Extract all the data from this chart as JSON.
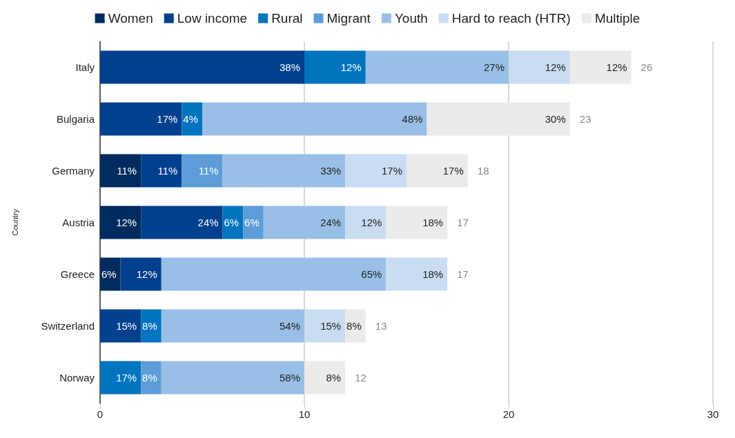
{
  "chart_data": {
    "type": "bar",
    "orientation": "horizontal",
    "stacked": true,
    "ylabel": "Country",
    "categories": [
      "Italy",
      "Bulgaria",
      "Germany",
      "Austria",
      "Greece",
      "Switzerland",
      "Norway"
    ],
    "series": [
      {
        "name": "Women",
        "color": "#002b5e",
        "values": [
          null,
          null,
          2,
          2,
          1,
          null,
          null
        ]
      },
      {
        "name": "Low income",
        "color": "#00408e",
        "values": [
          10,
          4,
          2,
          4,
          2,
          2,
          null
        ]
      },
      {
        "name": "Rural",
        "color": "#0074bf",
        "values": [
          3,
          1,
          null,
          1,
          null,
          1,
          2
        ]
      },
      {
        "name": "Migrant",
        "color": "#5c9dd8",
        "values": [
          null,
          null,
          2,
          1,
          null,
          null,
          1
        ]
      },
      {
        "name": "Youth",
        "color": "#99bfe6",
        "values": [
          7,
          11,
          6,
          4,
          11,
          7,
          7
        ]
      },
      {
        "name": "Hard to reach (HTR)",
        "color": "#c9dcf1",
        "values": [
          3,
          null,
          3,
          2,
          3,
          2,
          null
        ]
      },
      {
        "name": "Multiple",
        "color": "#ebebeb",
        "values": [
          3,
          7,
          3,
          3,
          null,
          1,
          2
        ]
      }
    ],
    "annotations": [
      {
        "text": "38%",
        "x": 10,
        "y": "Italy"
      },
      {
        "text": "12%",
        "x": 13,
        "y": "Italy"
      },
      {
        "text": "27%",
        "x": 20,
        "y": "Italy"
      },
      {
        "text": "12%",
        "x": 23,
        "y": "Italy"
      },
      {
        "text": "12%",
        "x": 26,
        "y": "Italy"
      },
      {
        "text": "17%",
        "x": 4,
        "y": "Bulgaria"
      },
      {
        "text": "4%",
        "x": 5,
        "y": "Bulgaria"
      },
      {
        "text": "48%",
        "x": 16,
        "y": "Bulgaria"
      },
      {
        "text": "30%",
        "x": 23,
        "y": "Bulgaria"
      },
      {
        "text": "11%",
        "x": 2,
        "y": "Germany"
      },
      {
        "text": "11%",
        "x": 4,
        "y": "Germany"
      },
      {
        "text": "11%",
        "x": 6,
        "y": "Germany"
      },
      {
        "text": "33%",
        "x": 12,
        "y": "Germany"
      },
      {
        "text": "17%",
        "x": 15,
        "y": "Germany"
      },
      {
        "text": "17%",
        "x": 18,
        "y": "Germany"
      },
      {
        "text": "12%",
        "x": 2,
        "y": "Austria"
      },
      {
        "text": "24%",
        "x": 6,
        "y": "Austria"
      },
      {
        "text": "6%",
        "x": 7,
        "y": "Austria"
      },
      {
        "text": "6%",
        "x": 8,
        "y": "Austria"
      },
      {
        "text": "24%",
        "x": 12,
        "y": "Austria"
      },
      {
        "text": "12%",
        "x": 14,
        "y": "Austria"
      },
      {
        "text": "18%",
        "x": 17,
        "y": "Austria"
      },
      {
        "text": "6%",
        "x": 1,
        "y": "Greece"
      },
      {
        "text": "12%",
        "x": 3,
        "y": "Greece"
      },
      {
        "text": "65%",
        "x": 14,
        "y": "Greece"
      },
      {
        "text": "18%",
        "x": 17,
        "y": "Greece"
      },
      {
        "text": "15%",
        "x": 2,
        "y": "Switzerland"
      },
      {
        "text": "8%",
        "x": 3,
        "y": "Switzerland"
      },
      {
        "text": "54%",
        "x": 10,
        "y": "Switzerland"
      },
      {
        "text": "15%",
        "x": 12,
        "y": "Switzerland"
      },
      {
        "text": "8%",
        "x": 13,
        "y": "Switzerland"
      },
      {
        "text": "17%",
        "x": 2,
        "y": "Norway"
      },
      {
        "text": "8%",
        "x": 3,
        "y": "Norway"
      },
      {
        "text": "58%",
        "x": 10,
        "y": "Norway"
      },
      {
        "text": "8%",
        "x": 12,
        "y": "Norway"
      }
    ],
    "totals": [
      "26",
      "23",
      "18",
      "17",
      "17",
      "13",
      "12"
    ],
    "xlim": [
      0,
      30
    ],
    "xticks": [
      0,
      10,
      20,
      30
    ],
    "grid": "x",
    "legend": "top"
  }
}
